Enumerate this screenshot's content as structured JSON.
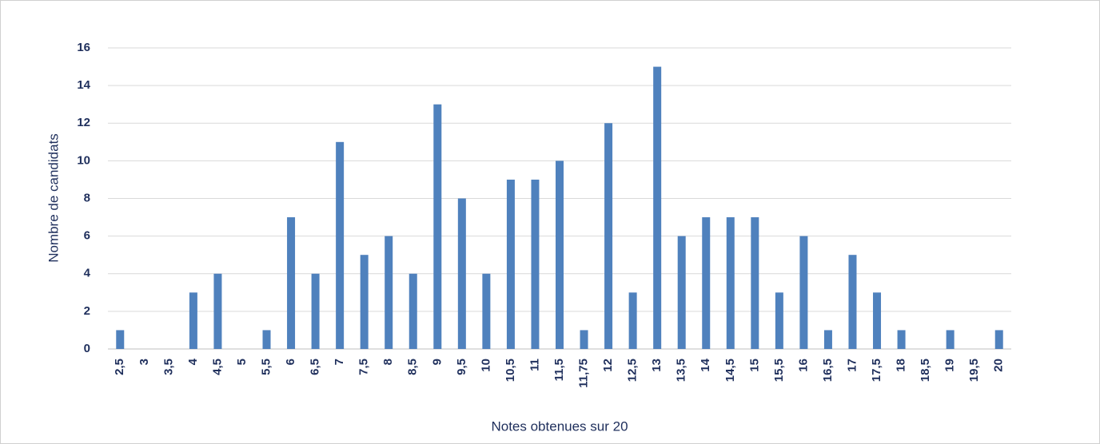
{
  "chart_data": {
    "type": "bar",
    "x_label": "Notes obtenues sur 20",
    "y_label": "Nombre de candidats",
    "categories": [
      "2,5",
      "3",
      "3,5",
      "4",
      "4,5",
      "5",
      "5,5",
      "6",
      "6,5",
      "7",
      "7,5",
      "8",
      "8,5",
      "9",
      "9,5",
      "10",
      "10,5",
      "11",
      "11,5",
      "11,75",
      "12",
      "12,5",
      "13",
      "13,5",
      "14",
      "14,5",
      "15",
      "15,5",
      "16",
      "16,5",
      "17",
      "17,5",
      "18",
      "18,5",
      "19",
      "19,5",
      "20"
    ],
    "values": [
      1,
      0,
      0,
      3,
      4,
      0,
      1,
      7,
      4,
      11,
      5,
      6,
      4,
      13,
      8,
      4,
      9,
      9,
      10,
      1,
      12,
      3,
      15,
      6,
      7,
      7,
      7,
      3,
      6,
      1,
      5,
      3,
      1,
      0,
      1,
      0,
      1
    ],
    "color": "#4f81bd",
    "ylim": [
      0,
      16
    ],
    "yticks": [
      0,
      2,
      4,
      6,
      8,
      10,
      12,
      14,
      16
    ],
    "grid": true
  }
}
